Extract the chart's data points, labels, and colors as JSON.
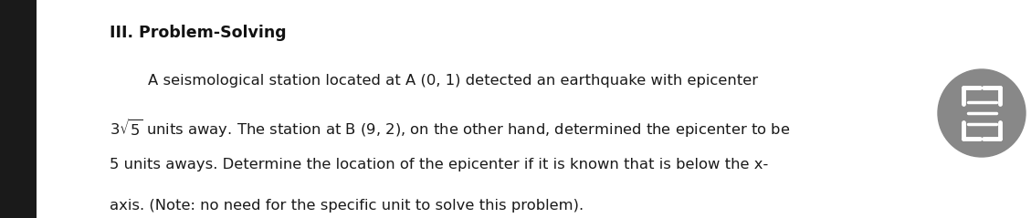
{
  "title": "III. Problem-Solving",
  "body_line1": "        A seismological station located at A (0, 1) detected an earthquake with epicenter",
  "body_line2": "3√5 units away. The station at B (9, 2), on the other hand, determined the epicenter to be",
  "body_line3": "5 units aways. Determine the location of the epicenter if it is known that is below the x-",
  "body_line4": "axis. (Note: no need for the specific unit to solve this problem).",
  "bg_color": "#ffffff",
  "text_color": "#1a1a1a",
  "title_color": "#111111",
  "font_size_title": 12.5,
  "font_size_body": 11.8,
  "icon_bg": "#888888",
  "icon_color": "#ffffff"
}
